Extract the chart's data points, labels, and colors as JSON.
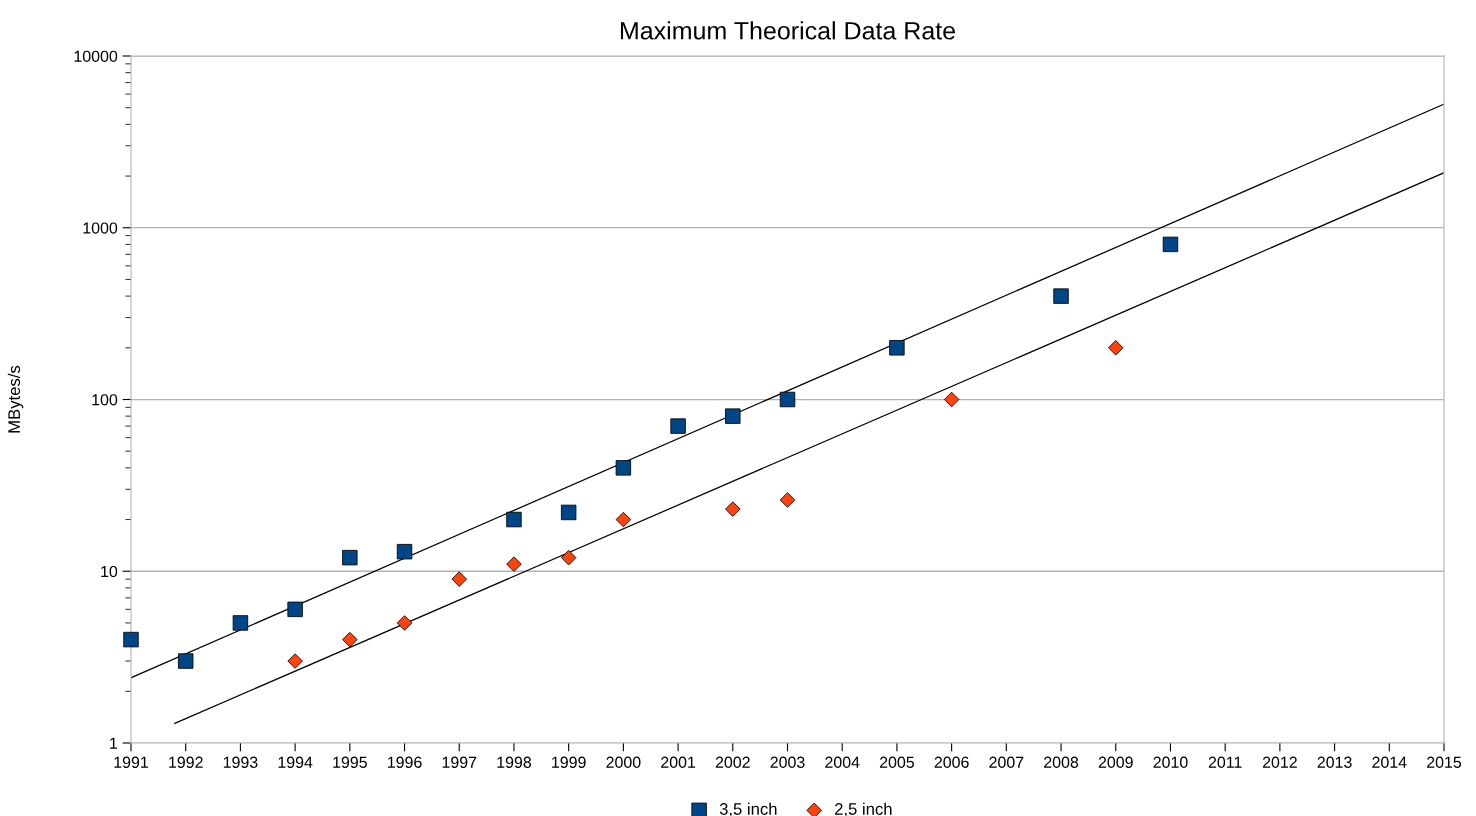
{
  "chart_data": {
    "type": "scatter",
    "title": "Maximum Theorical Data Rate",
    "ylabel": "MBytes/s",
    "log": "y",
    "grid": "y",
    "legend": "bottom",
    "xlim": [
      1991,
      2015
    ],
    "xticks": [
      1991,
      1992,
      1993,
      1994,
      1995,
      1996,
      1997,
      1998,
      1999,
      2000,
      2001,
      2002,
      2003,
      2004,
      2005,
      2006,
      2007,
      2008,
      2009,
      2010,
      2011,
      2012,
      2013,
      2014,
      2015
    ],
    "ylim": [
      1,
      10000
    ],
    "yticks": [
      1,
      10,
      100,
      1000,
      10000
    ],
    "series": [
      {
        "name": "3,5 inch",
        "color": "#004586",
        "marker": "square",
        "x": [
          1991,
          1992,
          1993,
          1994,
          1995,
          1996,
          1998,
          1999,
          2000,
          2001,
          2002,
          2003,
          2005,
          2008,
          2010
        ],
        "values": [
          4,
          3,
          5,
          6,
          12,
          13,
          20,
          22,
          40,
          70,
          80,
          100,
          200,
          400,
          800
        ]
      },
      {
        "name": "2,5 inch",
        "color": "#ff420e",
        "marker": "diamond",
        "x": [
          1994,
          1995,
          1996,
          1997,
          1998,
          1999,
          2000,
          2002,
          2003,
          2006,
          2009
        ],
        "values": [
          3,
          4,
          5,
          9,
          11,
          12,
          20,
          23,
          26,
          100,
          200
        ]
      },
      {
        "type": "line",
        "color": "#000000",
        "marker": "none",
        "x": [
          1991,
          2015
        ],
        "values": [
          2.4,
          5250
        ]
      },
      {
        "type": "line",
        "color": "#000000",
        "marker": "none",
        "x": [
          1991.8,
          2015
        ],
        "values": [
          1.3,
          2090
        ]
      }
    ]
  }
}
